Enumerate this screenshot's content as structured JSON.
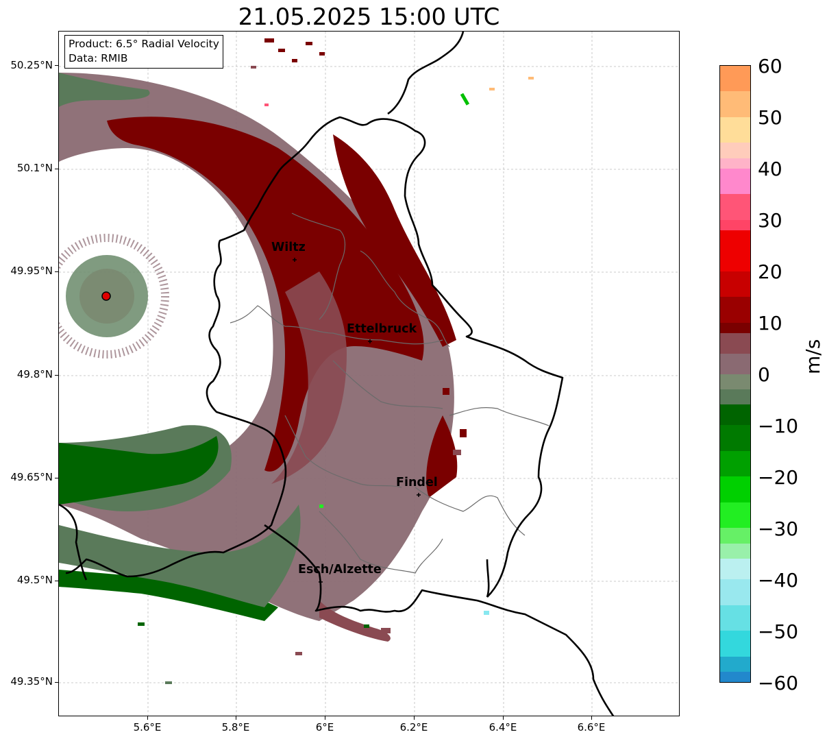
{
  "title": "21.05.2025 15:00 UTC",
  "info": {
    "product": "Product: 6.5° Radial Velocity",
    "data": "Data: RMIB"
  },
  "map": {
    "lat_ticks": [
      "50.25°N",
      "50.1°N",
      "49.95°N",
      "49.8°N",
      "49.65°N",
      "49.5°N",
      "49.35°N"
    ],
    "lon_ticks": [
      "5.6°E",
      "5.8°E",
      "6°E",
      "6.2°E",
      "6.4°E",
      "6.6°E"
    ],
    "radar_site_color": "#e00000",
    "cities": [
      {
        "name": "Wiltz"
      },
      {
        "name": "Ettelbruck"
      },
      {
        "name": "Findel"
      },
      {
        "name": "Esch/Alzette"
      }
    ]
  },
  "colorbar": {
    "unit": "m/s",
    "ticks": [
      "60",
      "50",
      "40",
      "30",
      "20",
      "10",
      "0",
      "−10",
      "−20",
      "−30",
      "−40",
      "−50",
      "−60"
    ],
    "min": -60,
    "max": 60,
    "segments": [
      {
        "from": 55,
        "to": 60,
        "color": "#ff9a57"
      },
      {
        "from": 50,
        "to": 55,
        "color": "#ffbb77"
      },
      {
        "from": 45,
        "to": 50,
        "color": "#ffdd99"
      },
      {
        "from": 42,
        "to": 45,
        "color": "#ffccbb"
      },
      {
        "from": 40,
        "to": 42,
        "color": "#ffb3c8"
      },
      {
        "from": 35,
        "to": 40,
        "color": "#ff88cc"
      },
      {
        "from": 30,
        "to": 35,
        "color": "#ff5577"
      },
      {
        "from": 28,
        "to": 30,
        "color": "#ff4466"
      },
      {
        "from": 20,
        "to": 28,
        "color": "#ee0000"
      },
      {
        "from": 15,
        "to": 20,
        "color": "#c80000"
      },
      {
        "from": 10,
        "to": 15,
        "color": "#9a0000"
      },
      {
        "from": 8,
        "to": 10,
        "color": "#7a0000"
      },
      {
        "from": 4,
        "to": 8,
        "color": "#8a4a52"
      },
      {
        "from": 0,
        "to": 4,
        "color": "#8a6a72"
      },
      {
        "from": -3,
        "to": 0,
        "color": "#7a8a70"
      },
      {
        "from": -6,
        "to": -3,
        "color": "#5a7a5a"
      },
      {
        "from": -10,
        "to": -6,
        "color": "#006400"
      },
      {
        "from": -15,
        "to": -10,
        "color": "#007a00"
      },
      {
        "from": -20,
        "to": -15,
        "color": "#00a000"
      },
      {
        "from": -25,
        "to": -20,
        "color": "#00d000"
      },
      {
        "from": -30,
        "to": -25,
        "color": "#22ee22"
      },
      {
        "from": -33,
        "to": -30,
        "color": "#66f066"
      },
      {
        "from": -36,
        "to": -33,
        "color": "#99f0aa"
      },
      {
        "from": -40,
        "to": -36,
        "color": "#bbf0f0"
      },
      {
        "from": -45,
        "to": -40,
        "color": "#99e8ee"
      },
      {
        "from": -50,
        "to": -45,
        "color": "#66e0e4"
      },
      {
        "from": -55,
        "to": -50,
        "color": "#33d8dd"
      },
      {
        "from": -58,
        "to": -55,
        "color": "#22aacc"
      },
      {
        "from": -60,
        "to": -58,
        "color": "#2288cc"
      }
    ]
  }
}
